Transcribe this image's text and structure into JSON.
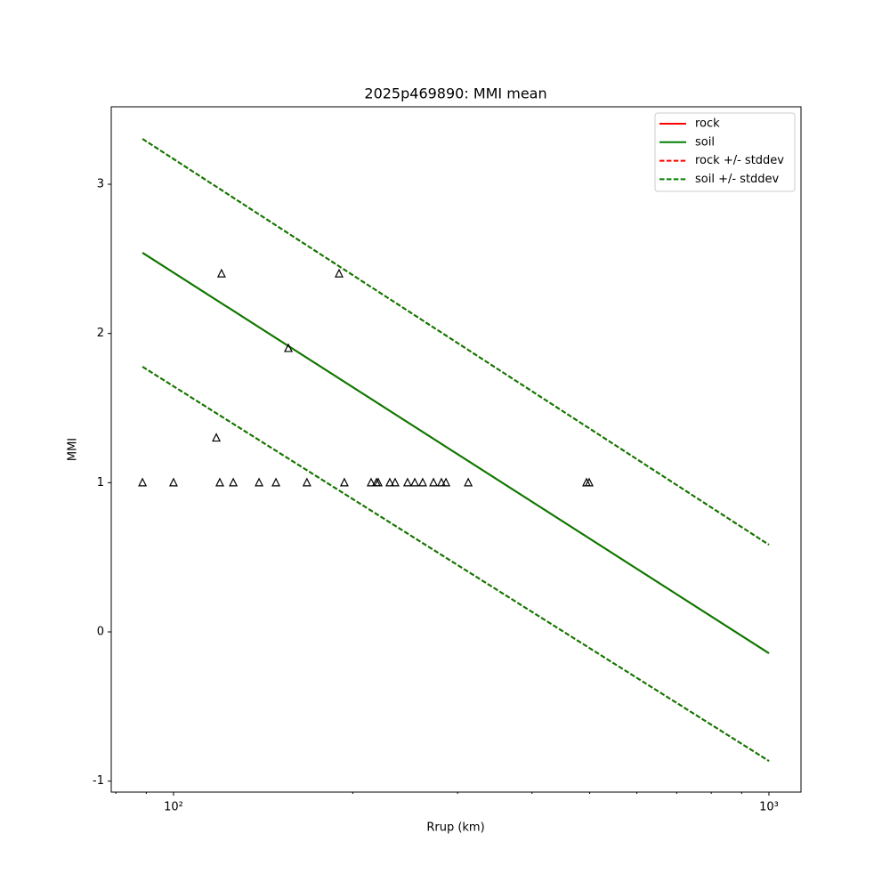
{
  "chart_data": {
    "type": "line",
    "title": "2025p469890: MMI mean",
    "x_label": "Rrup (km)",
    "y_label": "MMI",
    "xscale": "log",
    "xlim": [
      78.6,
      1132
    ],
    "ylim": [
      -1.0735,
      3.519
    ],
    "xticks": [
      {
        "value": 100,
        "label": "10²"
      },
      {
        "value": 1000,
        "label": "10³"
      }
    ],
    "xminorticks": [
      80,
      90,
      200,
      300,
      400,
      500,
      600,
      700,
      800,
      900
    ],
    "yticks": [
      -1,
      0,
      1,
      2,
      3
    ],
    "legend": "upper right",
    "series": [
      {
        "name": "rock",
        "color": "#ff0000",
        "style": "solid",
        "x": [
          88.7,
          1000
        ],
        "values": [
          2.541,
          -0.143
        ]
      },
      {
        "name": "soil",
        "color": "#008000",
        "style": "solid",
        "x": [
          88.7,
          1000
        ],
        "values": [
          2.541,
          -0.143
        ]
      },
      {
        "name": "rock +/- stddev",
        "color": "#ff0000",
        "style": "dashed",
        "x": [
          88.7,
          1000
        ],
        "upper": [
          3.304,
          0.584
        ],
        "lower": [
          1.777,
          -0.865
        ]
      },
      {
        "name": "soil +/- stddev",
        "color": "#008000",
        "style": "dashed",
        "x": [
          88.7,
          1000
        ],
        "upper": [
          3.304,
          0.584
        ],
        "lower": [
          1.777,
          -0.865
        ]
      }
    ],
    "observations": {
      "marker": "triangle",
      "color": "#000000",
      "x": [
        88.7,
        100,
        119.6,
        120.4,
        118,
        126,
        139.2,
        148.6,
        155.9,
        167.5,
        189.7,
        193.6,
        214.7,
        219.2,
        220.7,
        230.8,
        235.6,
        247.2,
        254.2,
        262.1,
        273.3,
        281.8,
        286.8,
        312.6,
        493.9,
        499
      ],
      "values": [
        1,
        1,
        1,
        2.4,
        1.3,
        1,
        1,
        1,
        1.9,
        1,
        2.4,
        1,
        1,
        1,
        1,
        1,
        1,
        1,
        1,
        1,
        1,
        1,
        1,
        1,
        1,
        1
      ]
    }
  }
}
